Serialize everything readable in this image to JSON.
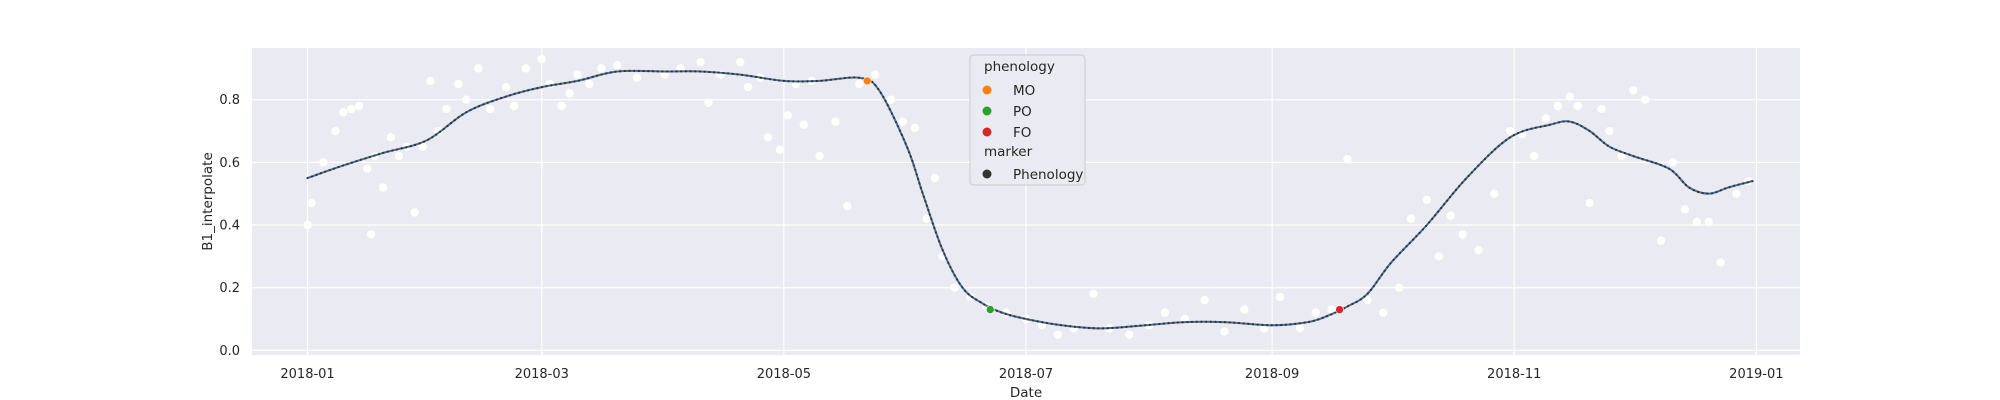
{
  "chart_data": {
    "type": "scatter",
    "xlabel": "Date",
    "ylabel": "B1_interpolate",
    "xlim": [
      "2017-12-18",
      "2019-01-12"
    ],
    "ylim": [
      -0.015,
      0.965
    ],
    "x_ticks": [
      "2018-01",
      "2018-03",
      "2018-05",
      "2018-07",
      "2018-09",
      "2018-11",
      "2019-01"
    ],
    "y_ticks": [
      0.0,
      0.2,
      0.4,
      0.6,
      0.8
    ],
    "grid": true,
    "legend_placement": "upper-center",
    "legend": {
      "title": "phenology",
      "entries": [
        {
          "label": "MO",
          "color": "#ff7f0e"
        },
        {
          "label": "PO",
          "color": "#2ca02c"
        },
        {
          "label": "FO",
          "color": "#d62728"
        }
      ],
      "marker_title": "marker",
      "marker_entries": [
        {
          "label": "Phenology",
          "color": "#333333"
        }
      ]
    },
    "colors": {
      "background": "#eaeaf2",
      "grid": "#ffffff",
      "observations": "#ffffff",
      "smooth_line": "#4c6a8a",
      "smooth_dots": "#333333"
    },
    "smooth_curve": {
      "x": [
        "2018-01-01",
        "2018-01-10",
        "2018-01-20",
        "2018-01-31",
        "2018-02-10",
        "2018-02-20",
        "2018-03-01",
        "2018-03-10",
        "2018-03-20",
        "2018-04-01",
        "2018-04-10",
        "2018-04-20",
        "2018-05-01",
        "2018-05-10",
        "2018-05-20",
        "2018-05-25",
        "2018-06-01",
        "2018-06-05",
        "2018-06-10",
        "2018-06-15",
        "2018-06-20",
        "2018-06-25",
        "2018-07-01",
        "2018-07-10",
        "2018-07-20",
        "2018-07-31",
        "2018-08-10",
        "2018-08-20",
        "2018-09-01",
        "2018-09-10",
        "2018-09-15",
        "2018-09-20",
        "2018-09-25",
        "2018-10-01",
        "2018-10-10",
        "2018-10-20",
        "2018-10-31",
        "2018-11-10",
        "2018-11-15",
        "2018-11-20",
        "2018-11-25",
        "2018-12-01",
        "2018-12-10",
        "2018-12-15",
        "2018-12-20",
        "2018-12-25",
        "2018-12-31"
      ],
      "y": [
        0.55,
        0.59,
        0.63,
        0.67,
        0.76,
        0.81,
        0.84,
        0.86,
        0.89,
        0.89,
        0.89,
        0.88,
        0.86,
        0.86,
        0.87,
        0.83,
        0.65,
        0.5,
        0.32,
        0.2,
        0.15,
        0.12,
        0.1,
        0.08,
        0.07,
        0.08,
        0.09,
        0.09,
        0.08,
        0.09,
        0.11,
        0.14,
        0.18,
        0.28,
        0.4,
        0.55,
        0.68,
        0.72,
        0.73,
        0.7,
        0.65,
        0.62,
        0.58,
        0.52,
        0.5,
        0.52,
        0.54
      ]
    },
    "observations": {
      "x": [
        "2018-01-01",
        "2018-01-02",
        "2018-01-05",
        "2018-01-08",
        "2018-01-10",
        "2018-01-12",
        "2018-01-14",
        "2018-01-16",
        "2018-01-17",
        "2018-01-18",
        "2018-01-20",
        "2018-01-22",
        "2018-01-24",
        "2018-01-26",
        "2018-01-28",
        "2018-01-30",
        "2018-02-01",
        "2018-02-03",
        "2018-02-05",
        "2018-02-08",
        "2018-02-10",
        "2018-02-13",
        "2018-02-16",
        "2018-02-20",
        "2018-02-22",
        "2018-02-25",
        "2018-03-01",
        "2018-03-03",
        "2018-03-06",
        "2018-03-08",
        "2018-03-10",
        "2018-03-13",
        "2018-03-16",
        "2018-03-20",
        "2018-03-25",
        "2018-04-01",
        "2018-04-05",
        "2018-04-10",
        "2018-04-12",
        "2018-04-15",
        "2018-04-20",
        "2018-04-22",
        "2018-04-25",
        "2018-04-27",
        "2018-04-30",
        "2018-05-02",
        "2018-05-04",
        "2018-05-06",
        "2018-05-08",
        "2018-05-10",
        "2018-05-14",
        "2018-05-17",
        "2018-05-20",
        "2018-05-24",
        "2018-05-28",
        "2018-05-31",
        "2018-06-03",
        "2018-06-06",
        "2018-06-08",
        "2018-06-10",
        "2018-06-13",
        "2018-06-17",
        "2018-06-21",
        "2018-06-26",
        "2018-07-01",
        "2018-07-05",
        "2018-07-09",
        "2018-07-13",
        "2018-07-18",
        "2018-07-22",
        "2018-07-27",
        "2018-08-01",
        "2018-08-05",
        "2018-08-10",
        "2018-08-15",
        "2018-08-20",
        "2018-08-25",
        "2018-08-30",
        "2018-09-03",
        "2018-09-08",
        "2018-09-12",
        "2018-09-16",
        "2018-09-20",
        "2018-09-25",
        "2018-09-29",
        "2018-10-03",
        "2018-10-06",
        "2018-10-10",
        "2018-10-13",
        "2018-10-16",
        "2018-10-19",
        "2018-10-23",
        "2018-10-27",
        "2018-10-31",
        "2018-11-03",
        "2018-11-06",
        "2018-11-09",
        "2018-11-12",
        "2018-11-15",
        "2018-11-17",
        "2018-11-20",
        "2018-11-23",
        "2018-11-25",
        "2018-11-28",
        "2018-12-01",
        "2018-12-04",
        "2018-12-08",
        "2018-12-11",
        "2018-12-14",
        "2018-12-17",
        "2018-12-20",
        "2018-12-23",
        "2018-12-27",
        "2018-12-30"
      ],
      "y": [
        0.4,
        0.47,
        0.6,
        0.7,
        0.76,
        0.77,
        0.78,
        0.58,
        0.37,
        0.62,
        0.52,
        0.68,
        0.62,
        0.65,
        0.44,
        0.65,
        0.86,
        0.7,
        0.77,
        0.85,
        0.8,
        0.9,
        0.77,
        0.84,
        0.78,
        0.9,
        0.93,
        0.85,
        0.78,
        0.82,
        0.88,
        0.85,
        0.9,
        0.91,
        0.87,
        0.88,
        0.9,
        0.92,
        0.79,
        0.88,
        0.92,
        0.84,
        0.87,
        0.68,
        0.64,
        0.75,
        0.85,
        0.72,
        0.86,
        0.62,
        0.73,
        0.46,
        0.85,
        0.88,
        0.8,
        0.73,
        0.71,
        0.42,
        0.55,
        0.3,
        0.2,
        0.17,
        0.14,
        0.12,
        0.1,
        0.08,
        0.05,
        0.07,
        0.18,
        0.07,
        0.05,
        0.08,
        0.12,
        0.1,
        0.16,
        0.06,
        0.13,
        0.07,
        0.17,
        0.07,
        0.12,
        0.13,
        0.61,
        0.16,
        0.12,
        0.2,
        0.42,
        0.48,
        0.3,
        0.43,
        0.37,
        0.32,
        0.5,
        0.7,
        0.69,
        0.62,
        0.74,
        0.78,
        0.81,
        0.78,
        0.47,
        0.77,
        0.7,
        0.62,
        0.83,
        0.8,
        0.35,
        0.6,
        0.45,
        0.41,
        0.41,
        0.28,
        0.5,
        0.54
      ]
    },
    "phenology_points": [
      {
        "label": "MO",
        "x": "2018-05-22",
        "y": 0.86
      },
      {
        "label": "PO",
        "x": "2018-06-22",
        "y": 0.13
      },
      {
        "label": "FO",
        "x": "2018-09-18",
        "y": 0.13
      }
    ]
  }
}
